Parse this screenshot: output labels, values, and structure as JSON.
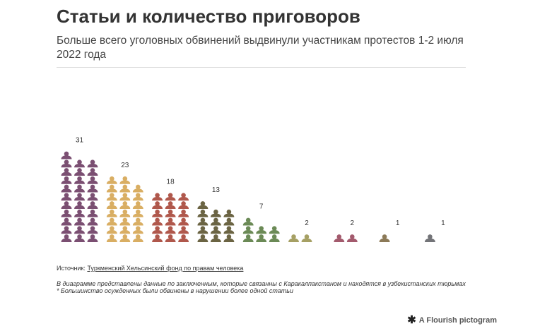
{
  "header": {
    "title": "Статьи и количество приговоров",
    "subtitle": "Больше всего уголовных обвинений выдвинули участникам протестов 1-2 июля 2022 года"
  },
  "chart_data": {
    "type": "pictogram",
    "title": "Статьи и количество приговоров",
    "subtitle": "Больше всего уголовных обвинений выдвинули участникам протестов 1-2 июля 2022 года",
    "icon": "person-icon",
    "columns_per_group": 3,
    "groups": [
      {
        "value": 31,
        "color": "#7b4f72"
      },
      {
        "value": 23,
        "color": "#d9ae63"
      },
      {
        "value": 18,
        "color": "#b0584c"
      },
      {
        "value": 13,
        "color": "#6b6443"
      },
      {
        "value": 7,
        "color": "#6b8a56"
      },
      {
        "value": 2,
        "color": "#a6a064"
      },
      {
        "value": 2,
        "color": "#a35a6d"
      },
      {
        "value": 1,
        "color": "#8c7a58"
      },
      {
        "value": 1,
        "color": "#737478"
      }
    ]
  },
  "footer": {
    "source_prefix": "Источник: ",
    "source_link": "Туркменский Хельсинский фонд по правам человека",
    "note_line1": "В диаграмме представлены данные по заключенным, которые связанны с Каракалпакстаном и находятся в узбекистанских тюрьмах",
    "note_line2": "* Большинство осужденных были обвинены в нарушении более одной статьи"
  },
  "branding": {
    "logo_icon": "flourish-asterisk-icon",
    "label": "A Flourish pictogram"
  }
}
